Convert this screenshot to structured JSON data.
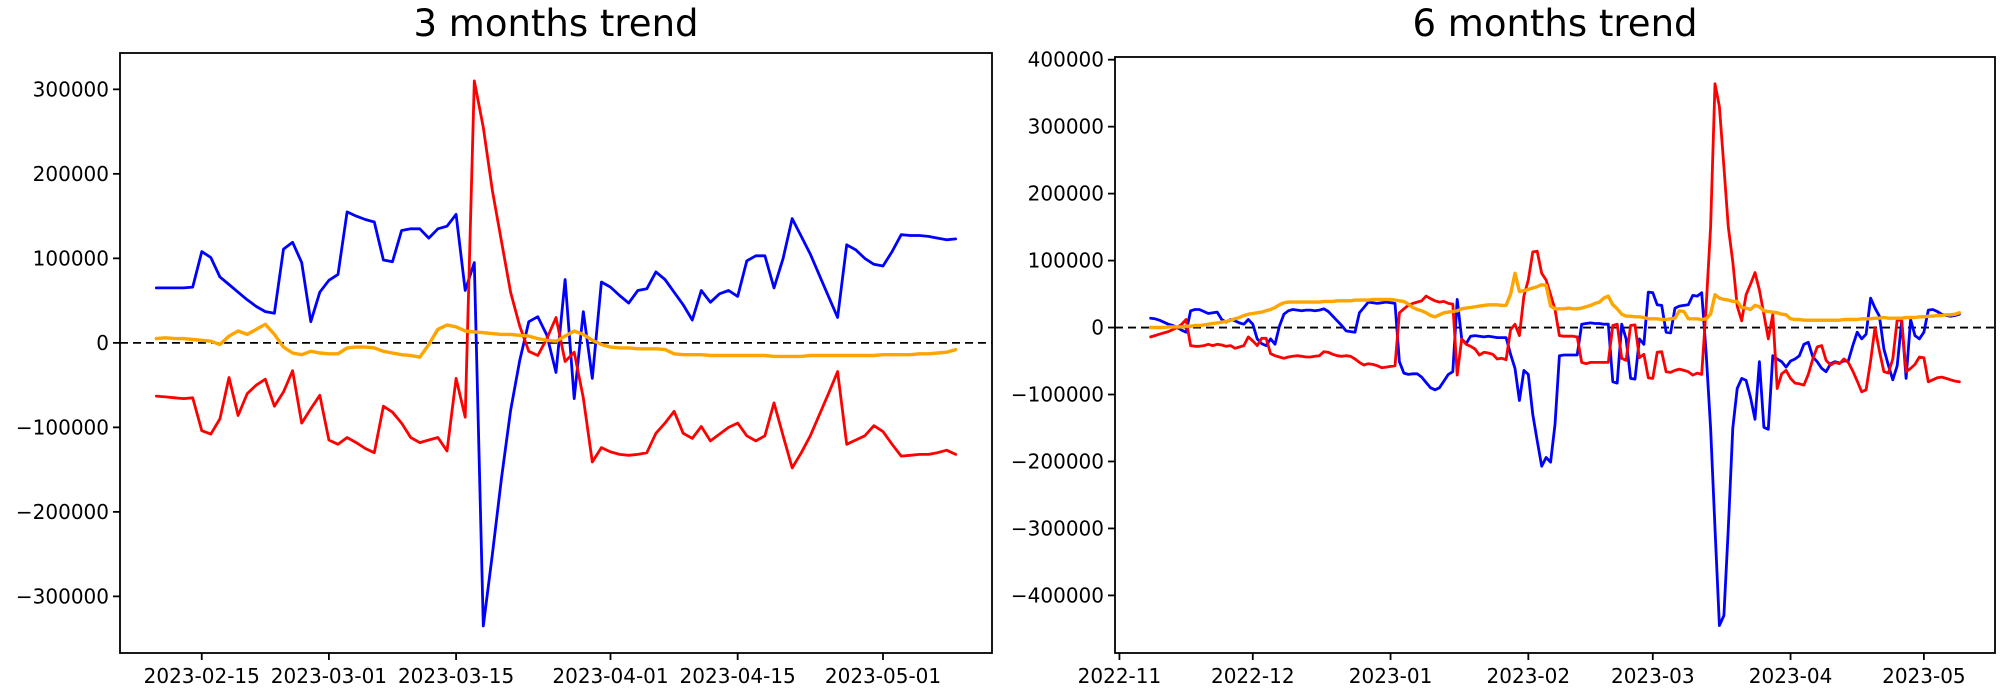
{
  "figure": {
    "background": "#ffffff",
    "text_color": "#000000"
  },
  "chart_data": [
    {
      "type": "line",
      "title": "3 months trend",
      "xlabel": "",
      "ylabel": "",
      "legend": "none",
      "grid": false,
      "zero_line": {
        "show": true,
        "color": "#000000",
        "style": "dashed"
      },
      "xlim": [
        "2023-02-06",
        "2023-05-13"
      ],
      "ylim": [
        -367000,
        343000
      ],
      "yticks": [
        {
          "label": "300000",
          "value": 300000
        },
        {
          "label": "200000",
          "value": 200000
        },
        {
          "label": "100000",
          "value": 100000
        },
        {
          "label": "0",
          "value": 0
        },
        {
          "label": "−100000",
          "value": -100000
        },
        {
          "label": "−200000",
          "value": -200000
        },
        {
          "label": "−300000",
          "value": -300000
        }
      ],
      "xticks": [
        {
          "label": "2023-02-15",
          "date": "2023-02-15"
        },
        {
          "label": "2023-03-01",
          "date": "2023-03-01"
        },
        {
          "label": "2023-03-15",
          "date": "2023-03-15"
        },
        {
          "label": "2023-04-01",
          "date": "2023-04-01"
        },
        {
          "label": "2023-04-15",
          "date": "2023-04-15"
        },
        {
          "label": "2023-05-01",
          "date": "2023-05-01"
        }
      ],
      "x_start": "2023-02-10",
      "x_step_days": 1,
      "value_unit": 1000,
      "series": [
        {
          "name": "blue",
          "color": "#0000ff",
          "width": 2.8,
          "values": [
            65,
            65,
            65,
            65,
            66,
            108,
            101,
            78,
            69,
            60,
            51,
            43,
            37,
            35,
            111,
            119,
            95,
            25,
            60,
            74,
            81,
            155,
            150,
            146,
            143,
            98,
            96,
            133,
            135,
            135,
            124,
            135,
            138,
            152,
            62,
            95,
            -335,
            -250,
            -160,
            -80,
            -21,
            25,
            31,
            9,
            -35,
            75,
            -66,
            37,
            -42,
            72,
            66,
            56,
            47,
            62,
            64,
            84,
            75,
            60,
            45,
            27,
            62,
            48,
            58,
            62,
            55,
            97,
            103,
            103,
            65,
            100,
            147,
            126,
            105,
            80,
            55,
            30,
            116,
            110,
            100,
            93,
            91,
            108,
            128,
            127,
            127,
            126,
            124,
            122,
            123
          ]
        },
        {
          "name": "red",
          "color": "#ff0000",
          "width": 2.8,
          "values": [
            -63,
            -64,
            -65,
            -66,
            -65,
            -104,
            -108,
            -90,
            -41,
            -86,
            -60,
            -50,
            -43,
            -75,
            -58,
            -33,
            -95,
            -78,
            -62,
            -115,
            -120,
            -112,
            -118,
            -125,
            -130,
            -75,
            -82,
            -95,
            -112,
            -118,
            -115,
            -112,
            -128,
            -42,
            -88,
            310,
            255,
            180,
            120,
            60,
            20,
            -10,
            -15,
            5,
            30,
            -22,
            -11,
            -65,
            -141,
            -124,
            -129,
            -132,
            -133,
            -132,
            -130,
            -107,
            -95,
            -81,
            -107,
            -113,
            -99,
            -116,
            -108,
            -100,
            -95,
            -110,
            -116,
            -110,
            -71,
            -110,
            -148,
            -130,
            -110,
            -85,
            -60,
            -34,
            -120,
            -115,
            -110,
            -98,
            -105,
            -120,
            -134,
            -133,
            -132,
            -132,
            -130,
            -127,
            -132
          ]
        },
        {
          "name": "orange",
          "color": "#ffa500",
          "width": 3.4,
          "values": [
            5,
            6,
            5,
            5,
            4,
            3,
            2,
            -2,
            8,
            14,
            10,
            16,
            22,
            10,
            -5,
            -12,
            -14,
            -10,
            -12,
            -13,
            -13,
            -6,
            -5,
            -5,
            -6,
            -10,
            -12,
            -14,
            -15,
            -17,
            -2,
            16,
            21,
            19,
            14,
            13,
            12,
            11,
            10,
            10,
            9,
            8,
            5,
            3,
            2,
            8,
            14,
            10,
            3,
            -2,
            -5,
            -6,
            -6,
            -7,
            -7,
            -7,
            -8,
            -13,
            -14,
            -14,
            -14,
            -15,
            -15,
            -15,
            -15,
            -15,
            -15,
            -15,
            -16,
            -16,
            -16,
            -16,
            -15,
            -15,
            -15,
            -15,
            -15,
            -15,
            -15,
            -15,
            -14,
            -14,
            -14,
            -14,
            -13,
            -13,
            -12,
            -11,
            -8
          ]
        }
      ]
    },
    {
      "type": "line",
      "title": "6 months trend",
      "xlabel": "",
      "ylabel": "",
      "legend": "none",
      "grid": false,
      "zero_line": {
        "show": true,
        "color": "#000000",
        "style": "dashed"
      },
      "xlim": [
        "2022-10-31",
        "2023-05-17"
      ],
      "ylim": [
        -486000,
        404000
      ],
      "yticks": [
        {
          "label": "400000",
          "value": 400000
        },
        {
          "label": "300000",
          "value": 300000
        },
        {
          "label": "200000",
          "value": 200000
        },
        {
          "label": "100000",
          "value": 100000
        },
        {
          "label": "0",
          "value": 0
        },
        {
          "label": "−100000",
          "value": -100000
        },
        {
          "label": "−200000",
          "value": -200000
        },
        {
          "label": "−300000",
          "value": -300000
        },
        {
          "label": "−400000",
          "value": -400000
        }
      ],
      "xticks": [
        {
          "label": "2022-11",
          "date": "2022-11-01"
        },
        {
          "label": "2022-12",
          "date": "2022-12-01"
        },
        {
          "label": "2023-01",
          "date": "2023-01-01"
        },
        {
          "label": "2023-02",
          "date": "2023-02-01"
        },
        {
          "label": "2023-03",
          "date": "2023-03-01"
        },
        {
          "label": "2023-04",
          "date": "2023-04-01"
        },
        {
          "label": "2023-05",
          "date": "2023-05-01"
        }
      ],
      "x_start": "2022-11-08",
      "x_step_days": 1,
      "value_unit": 1000,
      "series": [
        {
          "name": "blue",
          "color": "#0000ff",
          "width": 2.8,
          "values": [
            14,
            13,
            11,
            8,
            5,
            3,
            0,
            -4,
            -7,
            25,
            27,
            27,
            24,
            21,
            22,
            23,
            12,
            8,
            12,
            10,
            7,
            5,
            12,
            5,
            -17,
            -24,
            -27,
            -17,
            -25,
            2,
            20,
            25,
            27,
            26,
            25,
            26,
            26,
            25,
            26,
            28,
            24,
            17,
            10,
            3,
            -5,
            -6,
            -7,
            22,
            30,
            38,
            37,
            36,
            37,
            38,
            37,
            36,
            -51,
            -68,
            -70,
            -69,
            -69,
            -74,
            -82,
            -90,
            -93,
            -90,
            -80,
            -70,
            -66,
            42,
            -17,
            -24,
            -13,
            -12,
            -13,
            -14,
            -13,
            -14,
            -15,
            -15,
            -15,
            -40,
            -61,
            -109,
            -64,
            -70,
            -130,
            -169,
            -207,
            -194,
            -201,
            -145,
            -42,
            -41,
            -41,
            -41,
            -41,
            5,
            6,
            7,
            6,
            6,
            5,
            5,
            -81,
            -83,
            5,
            -17,
            -76,
            -77,
            -17,
            -25,
            53,
            52,
            34,
            33,
            -7,
            -8,
            29,
            32,
            33,
            34,
            48,
            47,
            52,
            -37,
            -150,
            -300,
            -445,
            -430,
            -300,
            -150,
            -91,
            -76,
            -79,
            -105,
            -137,
            -51,
            -149,
            -152,
            -42,
            -47,
            -51,
            -59,
            -50,
            -47,
            -42,
            -25,
            -22,
            -44,
            -51,
            -61,
            -66,
            -54,
            -51,
            -53,
            -50,
            -50,
            -27,
            -7,
            -17,
            -10,
            44,
            29,
            17,
            -32,
            -56,
            -78,
            -57,
            10,
            -76,
            12,
            -12,
            -17,
            -7,
            26,
            27,
            24,
            20,
            18,
            17,
            18,
            20
          ]
        },
        {
          "name": "red",
          "color": "#ff0000",
          "width": 2.8,
          "values": [
            -14,
            -12,
            -10,
            -8,
            -6,
            -3,
            0,
            5,
            12,
            -27,
            -28,
            -28,
            -27,
            -25,
            -27,
            -25,
            -26,
            -28,
            -27,
            -31,
            -29,
            -27,
            -14,
            -20,
            -27,
            -16,
            -16,
            -39,
            -42,
            -44,
            -46,
            -44,
            -43,
            -42,
            -43,
            -44,
            -44,
            -43,
            -42,
            -36,
            -37,
            -40,
            -42,
            -43,
            -42,
            -43,
            -47,
            -52,
            -56,
            -54,
            -55,
            -57,
            -60,
            -59,
            -58,
            -57,
            22,
            28,
            33,
            36,
            38,
            40,
            47,
            43,
            40,
            38,
            39,
            36,
            35,
            -71,
            -17,
            -25,
            -28,
            -32,
            -41,
            -37,
            -38,
            -40,
            -47,
            -46,
            -48,
            -3,
            5,
            -12,
            47,
            71,
            113,
            114,
            81,
            71,
            49,
            27,
            -12,
            -13,
            -13,
            -13,
            -14,
            -52,
            -54,
            -52,
            -52,
            -52,
            -52,
            -52,
            3,
            5,
            -46,
            -49,
            3,
            4,
            -45,
            -40,
            -75,
            -76,
            -37,
            -36,
            -66,
            -67,
            -64,
            -62,
            -64,
            -66,
            -71,
            -68,
            -70,
            30,
            150,
            364,
            330,
            240,
            150,
            98,
            32,
            10,
            49,
            65,
            82,
            56,
            20,
            -17,
            20,
            -91,
            -69,
            -64,
            -76,
            -83,
            -84,
            -86,
            -70,
            -47,
            -29,
            -27,
            -49,
            -56,
            -52,
            -54,
            -47,
            -52,
            -65,
            -80,
            -96,
            -93,
            -50,
            0,
            -35,
            -66,
            -68,
            -47,
            12,
            10,
            -66,
            -61,
            -55,
            -44,
            -45,
            -81,
            -78,
            -75,
            -74,
            -76,
            -78,
            -80,
            -81
          ]
        },
        {
          "name": "orange",
          "color": "#ffa500",
          "width": 3.4,
          "values": [
            0,
            0,
            0,
            0,
            1,
            1,
            1,
            1,
            2,
            2,
            3,
            3,
            4,
            5,
            6,
            7,
            8,
            9,
            11,
            13,
            15,
            18,
            20,
            21,
            22,
            23,
            25,
            27,
            30,
            34,
            37,
            38,
            38,
            38,
            38,
            38,
            38,
            38,
            38,
            39,
            39,
            39,
            40,
            40,
            40,
            40,
            41,
            41,
            41,
            41,
            42,
            42,
            42,
            42,
            42,
            41,
            40,
            39,
            35,
            30,
            27,
            25,
            22,
            18,
            16,
            19,
            22,
            23,
            24,
            25,
            28,
            29,
            30,
            31,
            32,
            33,
            34,
            34,
            34,
            33,
            33,
            50,
            81,
            54,
            55,
            57,
            59,
            61,
            64,
            63,
            32,
            28,
            28,
            28,
            29,
            28,
            28,
            29,
            31,
            33,
            36,
            38,
            44,
            47,
            34,
            28,
            20,
            17,
            17,
            16,
            16,
            15,
            13,
            13,
            13,
            12,
            12,
            13,
            14,
            25,
            24,
            13,
            13,
            13,
            12,
            13,
            20,
            49,
            44,
            42,
            41,
            39,
            39,
            30,
            29,
            27,
            33,
            31,
            25,
            24,
            23,
            22,
            20,
            19,
            13,
            12,
            12,
            11,
            11,
            11,
            11,
            11,
            11,
            11,
            11,
            11,
            12,
            12,
            12,
            12,
            13,
            13,
            13,
            14,
            14,
            15,
            14,
            14,
            14,
            14,
            15,
            15,
            15,
            16,
            16,
            17,
            17,
            18,
            18,
            19,
            19,
            20,
            22
          ]
        }
      ]
    }
  ]
}
